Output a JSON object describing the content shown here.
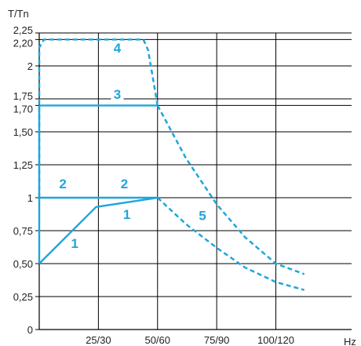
{
  "chart_data": {
    "type": "line",
    "ylabel": "T/Tn",
    "xlabel": "Hz",
    "xlim": [
      0,
      132
    ],
    "ylim": [
      0,
      2.25
    ],
    "y_ticks": [
      {
        "value": 0,
        "label": "0"
      },
      {
        "value": 0.25,
        "label": "0,25"
      },
      {
        "value": 0.5,
        "label": "0,50"
      },
      {
        "value": 0.75,
        "label": "0,75"
      },
      {
        "value": 1,
        "label": "1"
      },
      {
        "value": 1.25,
        "label": "1,25"
      },
      {
        "value": 1.5,
        "label": "1,50"
      },
      {
        "value": 1.7,
        "label": "1,70"
      },
      {
        "value": 1.75,
        "label": "1,75"
      },
      {
        "value": 2,
        "label": "2"
      },
      {
        "value": 2.2,
        "label": "2,20"
      },
      {
        "value": 2.25,
        "label": "2,25"
      }
    ],
    "x_ticks": [
      {
        "value": 25,
        "label": "25/30"
      },
      {
        "value": 50,
        "label": "50/60"
      },
      {
        "value": 75,
        "label": "75/90"
      },
      {
        "value": 100,
        "label": "100/120"
      }
    ],
    "grid": true,
    "colors": {
      "curve": "#1ea6dc",
      "grid": "#000000",
      "text": "#222222"
    },
    "series": [
      {
        "id": "curve-1",
        "label": "1",
        "style": "solid",
        "x": [
          0,
          24,
          50
        ],
        "y": [
          0.5,
          0.93,
          1.0
        ]
      },
      {
        "id": "curve-2",
        "label": "2",
        "style": "solid",
        "x": [
          0,
          50
        ],
        "y": [
          1.0,
          1.0
        ]
      },
      {
        "id": "curve-3",
        "label": "3",
        "style": "solid",
        "x": [
          0,
          50
        ],
        "y": [
          1.7,
          1.7
        ]
      },
      {
        "id": "curve-3-vertical",
        "label": "",
        "style": "solid",
        "x": [
          0,
          0
        ],
        "y": [
          0.5,
          1.7
        ]
      },
      {
        "id": "curve-4",
        "label": "4",
        "style": "dashed",
        "x": [
          0,
          0,
          2,
          44,
          46,
          50
        ],
        "y": [
          1.0,
          2.14,
          2.2,
          2.2,
          2.12,
          1.7
        ]
      },
      {
        "id": "curve-5-upper",
        "label": "5",
        "style": "dashed",
        "x": [
          50,
          62,
          75,
          87,
          100,
          112
        ],
        "y": [
          1.7,
          1.3,
          0.95,
          0.7,
          0.5,
          0.42
        ]
      },
      {
        "id": "curve-5-lower",
        "label": "",
        "style": "dashed",
        "x": [
          50,
          62,
          75,
          87,
          100,
          112
        ],
        "y": [
          1.0,
          0.8,
          0.62,
          0.47,
          0.36,
          0.3
        ]
      }
    ],
    "annotations": [
      {
        "text": "1",
        "x": 15,
        "y": 0.62
      },
      {
        "text": "1",
        "x": 37,
        "y": 0.84
      },
      {
        "text": "2",
        "x": 10,
        "y": 1.07
      },
      {
        "text": "2",
        "x": 36,
        "y": 1.07
      },
      {
        "text": "3",
        "x": 33,
        "y": 1.75
      },
      {
        "text": "4",
        "x": 33,
        "y": 2.1
      },
      {
        "text": "5",
        "x": 69,
        "y": 0.83
      }
    ]
  }
}
